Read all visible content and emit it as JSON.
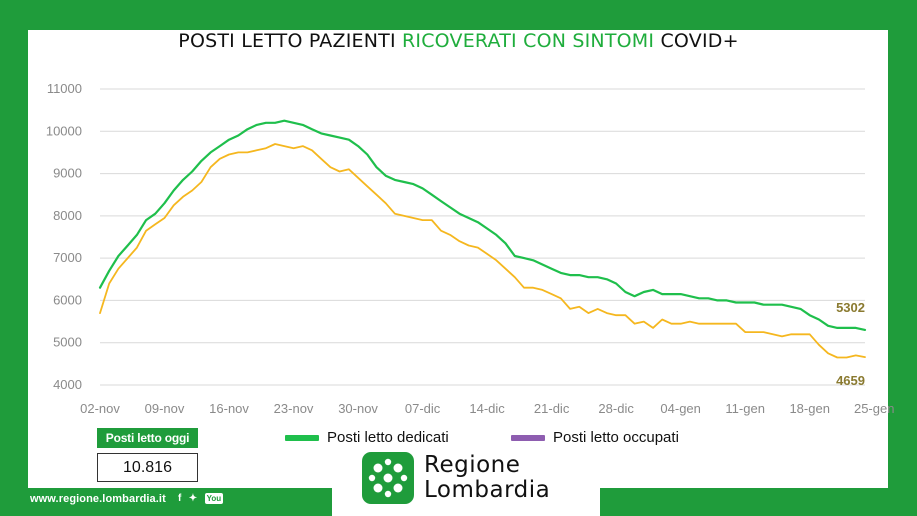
{
  "title": {
    "part1": "POSTI LETTO PAZIENTI ",
    "highlight": "RICOVERATI CON SINTOMI",
    "part2": " COVID+"
  },
  "colors": {
    "brand_green": "#1f9c3b",
    "series_dedicati": "#1fbf4c",
    "series_occupati": "#f5b71f",
    "legend_occupati": "#8e5db0",
    "grid": "#d9d9d9"
  },
  "chart_data": {
    "type": "line",
    "ylim": [
      4000,
      11000
    ],
    "yticks": [
      4000,
      5000,
      6000,
      7000,
      8000,
      9000,
      10000,
      11000
    ],
    "x_start": "02-nov",
    "x_labels": [
      "02-nov",
      "09-nov",
      "16-nov",
      "23-nov",
      "30-nov",
      "07-dic",
      "14-dic",
      "21-dic",
      "28-dic",
      "04-gen",
      "11-gen",
      "18-gen",
      "25-gen"
    ],
    "grid": "horizontal",
    "series": [
      {
        "name": "Posti letto dedicati",
        "values": [
          6300,
          6700,
          7050,
          7300,
          7550,
          7900,
          8050,
          8300,
          8600,
          8850,
          9050,
          9300,
          9500,
          9650,
          9800,
          9900,
          10050,
          10150,
          10200,
          10200,
          10250,
          10200,
          10150,
          10050,
          9950,
          9900,
          9850,
          9800,
          9650,
          9450,
          9150,
          8950,
          8850,
          8800,
          8750,
          8650,
          8500,
          8350,
          8200,
          8050,
          7950,
          7850,
          7700,
          7550,
          7350,
          7050,
          7000,
          6950,
          6850,
          6750,
          6650,
          6600,
          6600,
          6550,
          6550,
          6500,
          6400,
          6200,
          6100,
          6200,
          6250,
          6150,
          6150,
          6150,
          6100,
          6050,
          6050,
          6000,
          6000,
          5950,
          5950,
          5950,
          5900,
          5900,
          5900,
          5850,
          5800,
          5650,
          5550,
          5400,
          5350,
          5350,
          5350,
          5302
        ]
      },
      {
        "name": "Posti letto occupati",
        "values": [
          5700,
          6400,
          6750,
          7000,
          7250,
          7650,
          7800,
          7950,
          8250,
          8450,
          8600,
          8800,
          9150,
          9350,
          9450,
          9500,
          9500,
          9550,
          9600,
          9700,
          9650,
          9600,
          9650,
          9550,
          9350,
          9150,
          9050,
          9100,
          8900,
          8700,
          8500,
          8300,
          8050,
          8000,
          7950,
          7900,
          7900,
          7650,
          7550,
          7400,
          7300,
          7250,
          7100,
          6950,
          6750,
          6550,
          6300,
          6300,
          6250,
          6150,
          6050,
          5800,
          5850,
          5700,
          5800,
          5700,
          5650,
          5650,
          5450,
          5500,
          5350,
          5550,
          5450,
          5450,
          5500,
          5450,
          5450,
          5450,
          5450,
          5450,
          5250,
          5250,
          5250,
          5200,
          5150,
          5200,
          5200,
          5200,
          4950,
          4750,
          4650,
          4650,
          4700,
          4659
        ]
      }
    ],
    "end_labels": {
      "dedicati": "5302",
      "occupati": "4659"
    }
  },
  "today": {
    "label": "Posti letto oggi",
    "value": "10.816"
  },
  "footer": {
    "website": "www.regione.lombardia.it",
    "social": {
      "facebook": "f",
      "twitter": "✦",
      "youtube": "You"
    }
  },
  "brand": {
    "line1": "Regione",
    "line2": "Lombardia",
    "logo_icon": "lombardy-rose-logo"
  }
}
